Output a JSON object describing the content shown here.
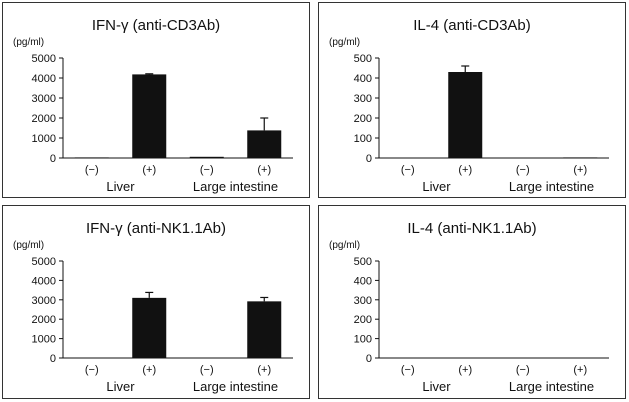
{
  "chart_data": [
    {
      "type": "bar",
      "title": "IFN-γ (anti-CD3Ab)",
      "ylabel": "(pg/ml)",
      "ylim": [
        0,
        5000
      ],
      "yticks": [
        0,
        1000,
        2000,
        3000,
        4000,
        5000
      ],
      "categories": [
        "(−)",
        "(+)",
        "(−)",
        "(+)"
      ],
      "groups": [
        "Liver",
        "Large intestine"
      ],
      "values": [
        30,
        4180,
        60,
        1380
      ],
      "errors": [
        0,
        30,
        0,
        620
      ],
      "grid": false,
      "bar_color": "#111111"
    },
    {
      "type": "bar",
      "title": "IL-4 (anti-CD3Ab)",
      "ylabel": "(pg/ml)",
      "ylim": [
        0,
        500
      ],
      "yticks": [
        0,
        100,
        200,
        300,
        400,
        500
      ],
      "categories": [
        "(−)",
        "(+)",
        "(−)",
        "(+)"
      ],
      "groups": [
        "Liver",
        "Large intestine"
      ],
      "values": [
        0,
        430,
        0,
        3
      ],
      "errors": [
        0,
        30,
        0,
        0
      ],
      "grid": false,
      "bar_color": "#111111"
    },
    {
      "type": "bar",
      "title": "IFN-γ (anti-NK1.1Ab)",
      "ylabel": "(pg/ml)",
      "ylim": [
        0,
        5000
      ],
      "yticks": [
        0,
        1000,
        2000,
        3000,
        4000,
        5000
      ],
      "categories": [
        "(−)",
        "(+)",
        "(−)",
        "(+)"
      ],
      "groups": [
        "Liver",
        "Large intestine"
      ],
      "values": [
        0,
        3100,
        0,
        2920
      ],
      "errors": [
        0,
        280,
        0,
        200
      ],
      "grid": false,
      "bar_color": "#111111"
    },
    {
      "type": "bar",
      "title": "IL-4 (anti-NK1.1Ab)",
      "ylabel": "(pg/ml)",
      "ylim": [
        0,
        500
      ],
      "yticks": [
        0,
        100,
        200,
        300,
        400,
        500
      ],
      "categories": [
        "(−)",
        "(+)",
        "(−)",
        "(+)"
      ],
      "groups": [
        "Liver",
        "Large intestine"
      ],
      "values": [
        0,
        0,
        0,
        0
      ],
      "errors": [
        0,
        0,
        0,
        0
      ],
      "grid": false,
      "bar_color": "#111111"
    }
  ]
}
